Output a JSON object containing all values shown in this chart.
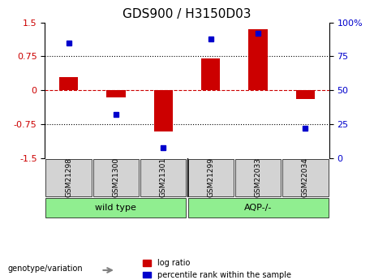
{
  "title": "GDS900 / H3150D03",
  "samples": [
    "GSM21298",
    "GSM21300",
    "GSM21301",
    "GSM21299",
    "GSM22033",
    "GSM22034"
  ],
  "log_ratios": [
    0.3,
    -0.15,
    -0.9,
    0.7,
    1.35,
    -0.2
  ],
  "percentile_ranks": [
    85,
    32,
    8,
    88,
    92,
    22
  ],
  "groups": [
    {
      "label": "wild type",
      "start": 0,
      "end": 3,
      "color": "#90ee90"
    },
    {
      "label": "AQP-/-",
      "start": 3,
      "end": 6,
      "color": "#90ee90"
    }
  ],
  "bar_color": "#cc0000",
  "dot_color": "#0000cc",
  "zero_line_color": "#cc0000",
  "ylim_left": [
    -1.5,
    1.5
  ],
  "ylim_right": [
    0,
    100
  ],
  "yticks_left": [
    -1.5,
    -0.75,
    0,
    0.75,
    1.5
  ],
  "yticks_right": [
    0,
    25,
    50,
    75,
    100
  ],
  "genotype_label": "genotype/variation",
  "legend_log": "log ratio",
  "legend_pct": "percentile rank within the sample",
  "bar_width": 0.4
}
